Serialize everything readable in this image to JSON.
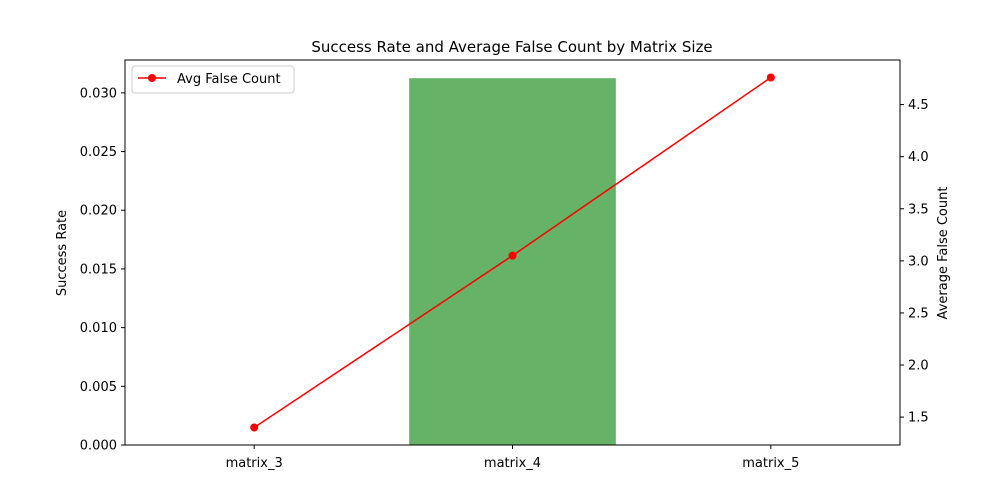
{
  "chart_data": {
    "type": "bar",
    "title": "Success Rate and Average False Count by Matrix Size",
    "categories": [
      "matrix_3",
      "matrix_4",
      "matrix_5"
    ],
    "bar_series": {
      "name": "",
      "values": [
        0.0,
        0.03125,
        0.0
      ],
      "color": "#66b266"
    },
    "line_series": {
      "name": "Avg False Count",
      "values": [
        1.4,
        3.05,
        4.76
      ],
      "color": "#ff0000"
    },
    "ylabel_left": "Success Rate",
    "ylabel_right": "Average False Count",
    "ylim_left": [
      0,
      0.0328
    ],
    "ylim_right": [
      1.232,
      4.928
    ],
    "yticks_left": [
      "0.000",
      "0.005",
      "0.010",
      "0.015",
      "0.020",
      "0.025",
      "0.030"
    ],
    "yticks_right": [
      "1.5",
      "2.0",
      "2.5",
      "3.0",
      "3.5",
      "4.0",
      "4.5"
    ],
    "legend_position": "top-left",
    "grid": false
  }
}
